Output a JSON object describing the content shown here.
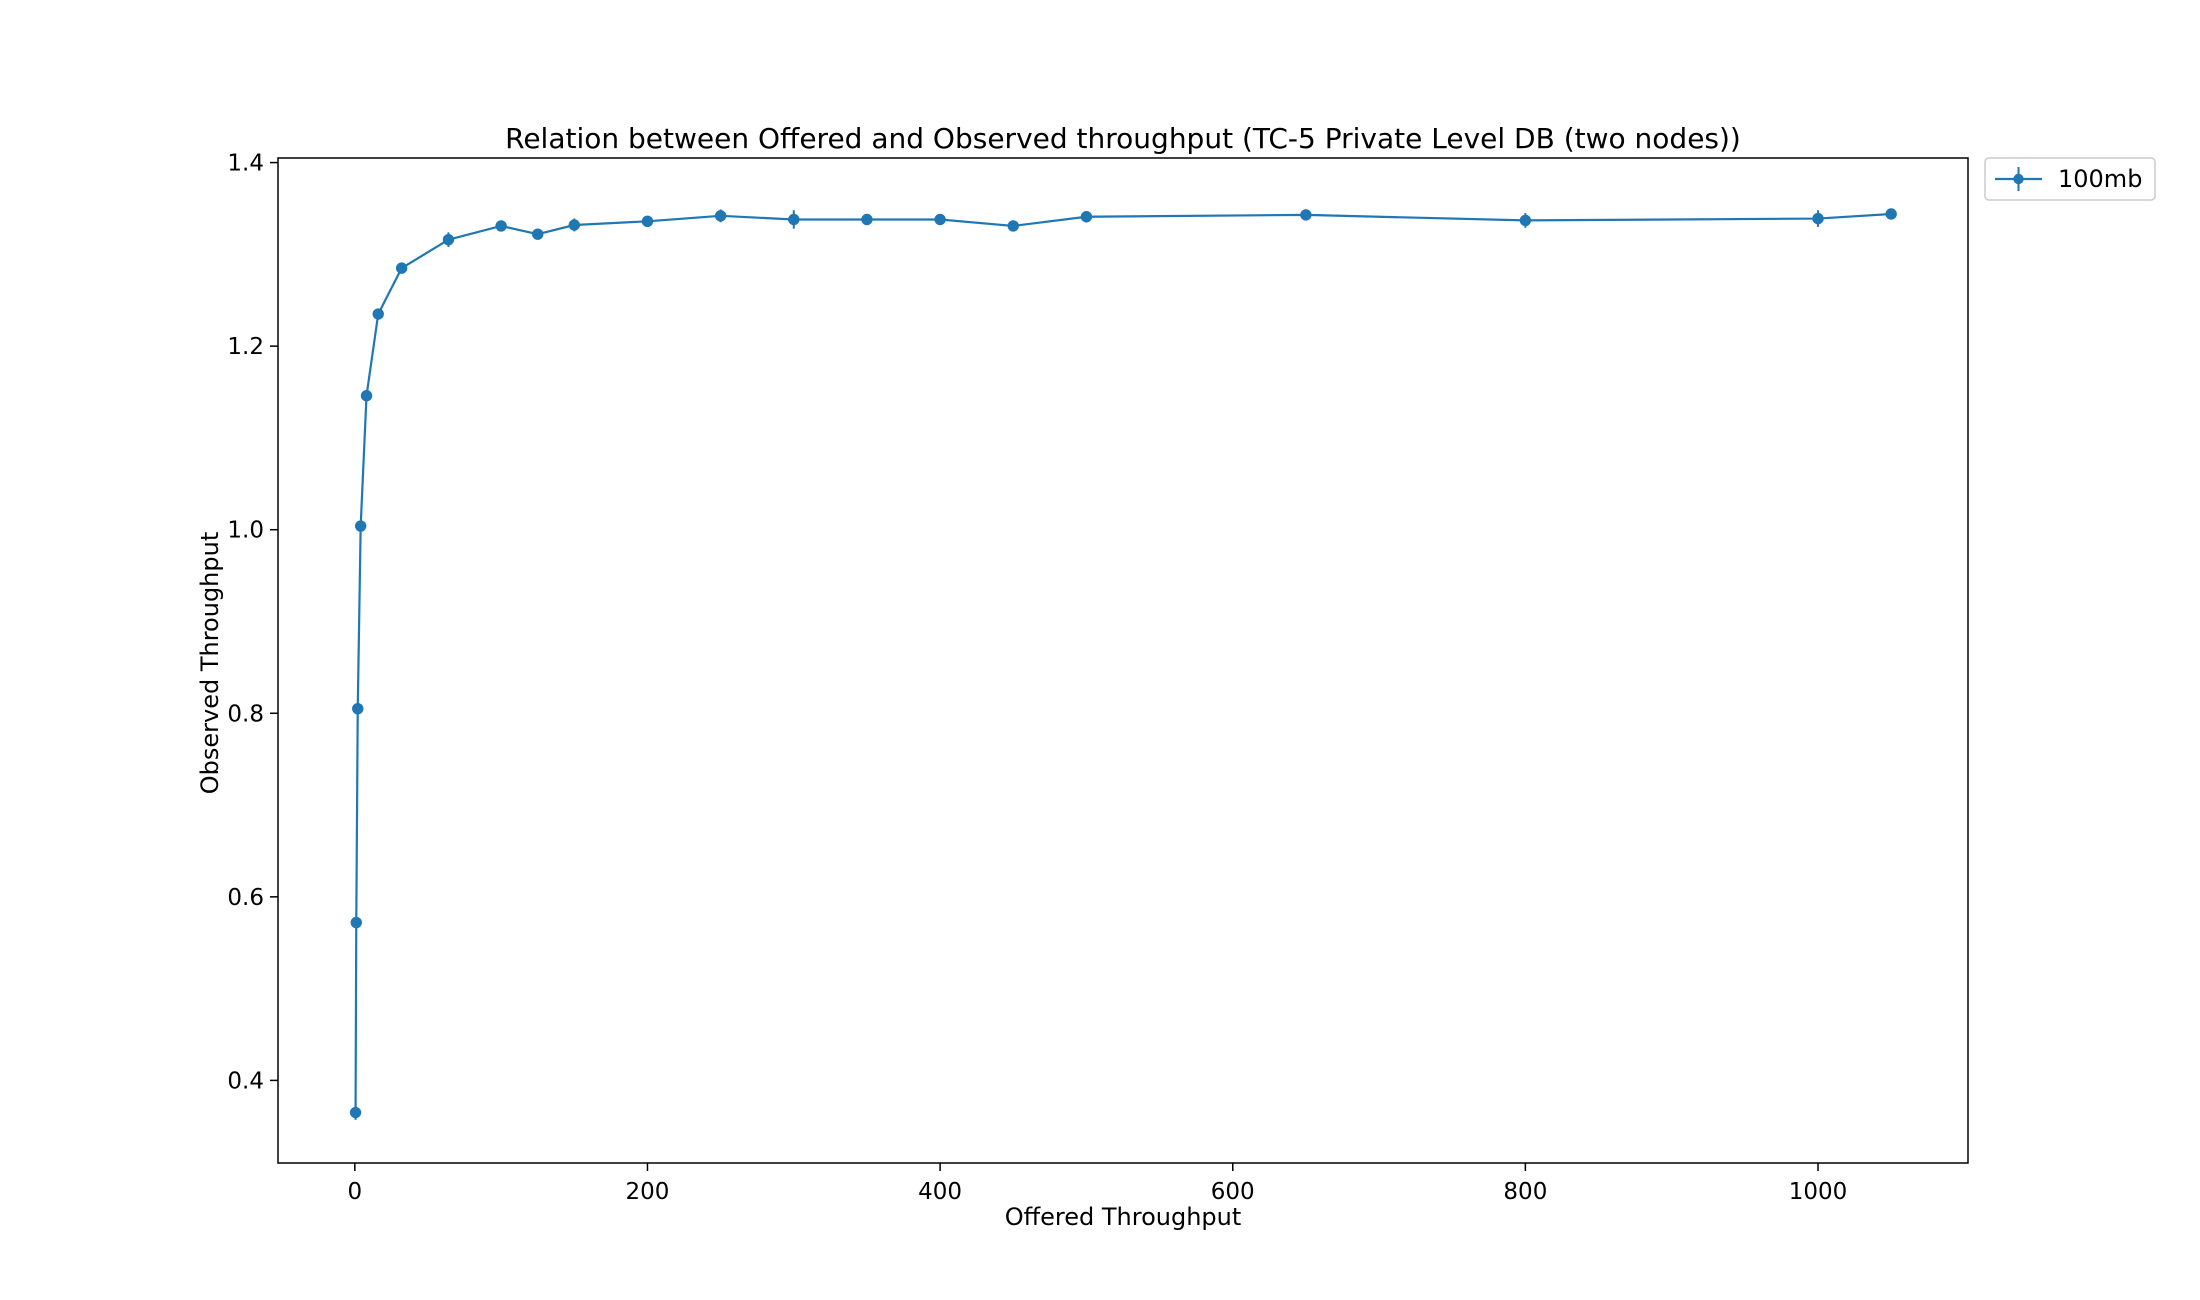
{
  "chart_data": {
    "type": "line",
    "title": "Relation between Offered and Observed throughput (TC-5  Private Level DB (two nodes))",
    "xlabel": "Offered Throughput",
    "ylabel": "Observed Throughput",
    "xlim": [
      -52.5,
      1102.5
    ],
    "ylim": [
      0.31,
      1.405
    ],
    "xticks": [
      0,
      200,
      400,
      600,
      800,
      1000
    ],
    "xtick_labels": [
      "0",
      "200",
      "400",
      "600",
      "800",
      "1000"
    ],
    "yticks": [
      0.4,
      0.6,
      0.8,
      1.0,
      1.2,
      1.4
    ],
    "ytick_labels": [
      "0.4",
      "0.6",
      "0.8",
      "1.0",
      "1.2",
      "1.4"
    ],
    "grid": false,
    "legend_position": "outside-top-right",
    "colors": {
      "series": "#1f77b4",
      "axes": "#000000",
      "background": "#ffffff"
    },
    "series": [
      {
        "name": "100mb",
        "x": [
          0.5,
          1,
          2,
          4,
          8,
          16,
          32,
          64,
          100,
          125,
          150,
          200,
          250,
          300,
          350,
          400,
          450,
          500,
          650,
          800,
          1000,
          1050
        ],
        "y": [
          0.365,
          0.572,
          0.805,
          1.004,
          1.146,
          1.235,
          1.285,
          1.316,
          1.331,
          1.322,
          1.332,
          1.336,
          1.342,
          1.338,
          1.338,
          1.338,
          1.331,
          1.341,
          1.343,
          1.337,
          1.339,
          1.344
        ],
        "yerr": [
          0.008,
          0.004,
          0.004,
          0.004,
          0.004,
          0.005,
          0.006,
          0.008,
          0.004,
          0.004,
          0.007,
          0.006,
          0.007,
          0.01,
          0.004,
          0.006,
          0.006,
          0.006,
          0.006,
          0.008,
          0.009,
          0.004
        ]
      }
    ]
  }
}
